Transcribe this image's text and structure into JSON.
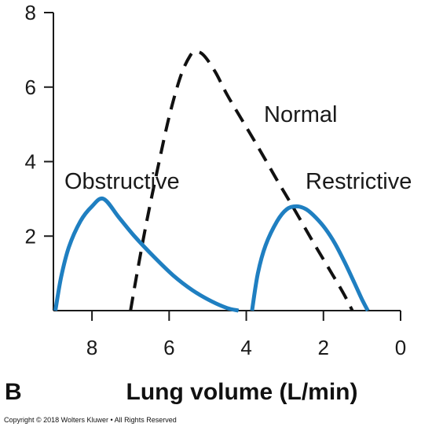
{
  "chart_data": {
    "type": "line",
    "panel_label": "B",
    "xlabel": "Lung volume (L/min)",
    "ylabel": "",
    "xlim": [
      9,
      0
    ],
    "ylim": [
      0,
      8
    ],
    "x_ticks": [
      8,
      6,
      4,
      2,
      0
    ],
    "y_ticks": [
      2,
      4,
      6,
      8
    ],
    "grid": false,
    "series": [
      {
        "name": "Normal",
        "style": "dashed",
        "color": "#111111",
        "x": [
          7.0,
          6.85,
          6.6,
          6.3,
          6.0,
          5.7,
          5.45,
          5.3,
          5.1,
          4.8,
          4.5,
          4.1,
          3.7,
          3.2,
          2.8,
          2.3,
          1.9,
          1.5,
          1.25
        ],
        "y": [
          0.0,
          0.9,
          2.3,
          3.8,
          5.2,
          6.3,
          6.85,
          6.95,
          6.85,
          6.4,
          5.8,
          5.1,
          4.4,
          3.5,
          2.8,
          1.9,
          1.2,
          0.5,
          0.0
        ]
      },
      {
        "name": "Obstructive",
        "style": "solid",
        "color": "#1f7fc1",
        "x": [
          8.95,
          8.8,
          8.6,
          8.3,
          8.0,
          7.7,
          7.3,
          6.9,
          6.4,
          5.9,
          5.4,
          4.9,
          4.5,
          4.2
        ],
        "y": [
          0.0,
          0.9,
          1.7,
          2.4,
          2.8,
          3.0,
          2.5,
          2.0,
          1.45,
          0.95,
          0.55,
          0.25,
          0.07,
          0.0
        ]
      },
      {
        "name": "Restrictive",
        "style": "solid",
        "color": "#1f7fc1",
        "x": [
          3.85,
          3.7,
          3.5,
          3.2,
          2.95,
          2.7,
          2.45,
          2.2,
          1.95,
          1.7,
          1.45,
          1.2,
          1.0,
          0.85
        ],
        "y": [
          0.0,
          1.0,
          1.75,
          2.4,
          2.72,
          2.8,
          2.72,
          2.5,
          2.2,
          1.8,
          1.3,
          0.75,
          0.3,
          0.0
        ]
      }
    ],
    "annotations": [
      "Normal",
      "Obstructive",
      "Restrictive"
    ]
  },
  "copyright": "Copyright © 2018 Wolters Kluwer • All Rights Reserved"
}
